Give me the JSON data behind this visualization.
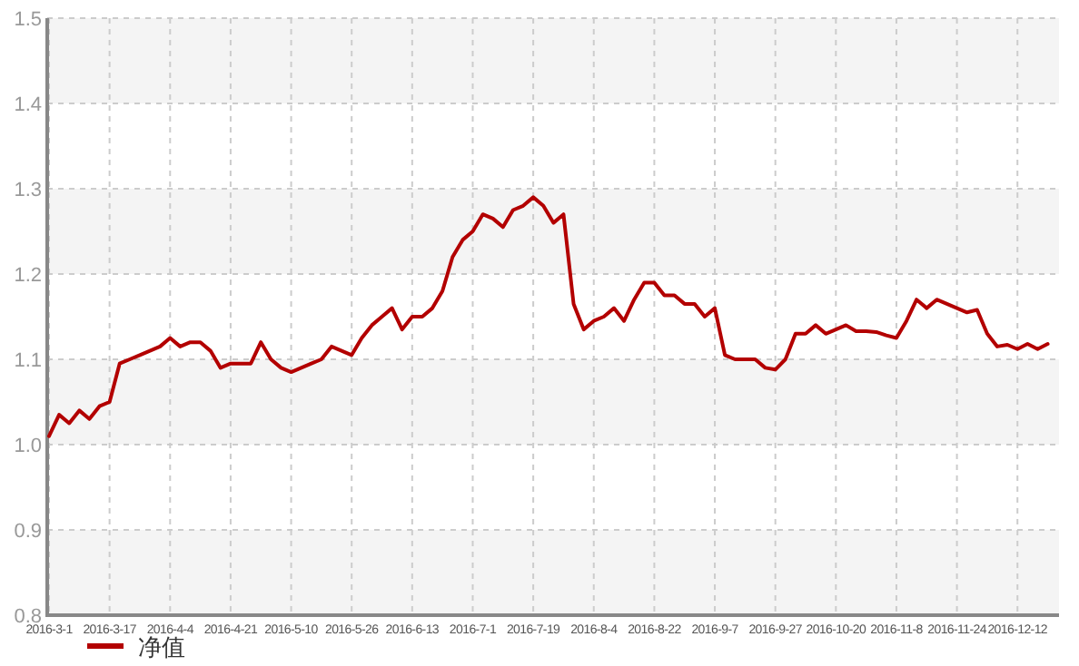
{
  "chart_data": {
    "type": "line",
    "categories": [
      "2016-3-1",
      null,
      null,
      null,
      null,
      null,
      "2016-3-17",
      null,
      null,
      null,
      null,
      null,
      "2016-4-4",
      null,
      null,
      null,
      null,
      null,
      "2016-4-21",
      null,
      null,
      null,
      null,
      null,
      "2016-5-10",
      null,
      null,
      null,
      null,
      null,
      "2016-5-26",
      null,
      null,
      null,
      null,
      null,
      "2016-6-13",
      null,
      null,
      null,
      null,
      null,
      "2016-7-1",
      null,
      null,
      null,
      null,
      null,
      "2016-7-19",
      null,
      null,
      null,
      null,
      null,
      "2016-8-4",
      null,
      null,
      null,
      null,
      null,
      "2016-8-22",
      null,
      null,
      null,
      null,
      null,
      "2016-9-7",
      null,
      null,
      null,
      null,
      null,
      "2016-9-27",
      null,
      null,
      null,
      null,
      null,
      "2016-10-20",
      null,
      null,
      null,
      null,
      null,
      "2016-11-8",
      null,
      null,
      null,
      null,
      null,
      "2016-11-24",
      null,
      null,
      null,
      null,
      null,
      "2016-12-12",
      null,
      null,
      null
    ],
    "series": [
      {
        "name": "净值",
        "color": "#b30000",
        "values": [
          1.01,
          1.035,
          1.025,
          1.04,
          1.03,
          1.045,
          1.05,
          1.095,
          1.1,
          1.105,
          1.11,
          1.115,
          1.125,
          1.115,
          1.12,
          1.12,
          1.11,
          1.09,
          1.095,
          1.095,
          1.095,
          1.12,
          1.1,
          1.09,
          1.085,
          1.09,
          1.095,
          1.1,
          1.115,
          1.11,
          1.105,
          1.125,
          1.14,
          1.15,
          1.16,
          1.135,
          1.15,
          1.15,
          1.16,
          1.18,
          1.22,
          1.24,
          1.25,
          1.27,
          1.265,
          1.255,
          1.275,
          1.28,
          1.29,
          1.28,
          1.26,
          1.27,
          1.165,
          1.135,
          1.145,
          1.15,
          1.16,
          1.145,
          1.17,
          1.19,
          1.19,
          1.175,
          1.175,
          1.165,
          1.165,
          1.15,
          1.16,
          1.105,
          1.1,
          1.1,
          1.1,
          1.09,
          1.088,
          1.1,
          1.13,
          1.13,
          1.14,
          1.13,
          1.135,
          1.14,
          1.133,
          1.133,
          1.132,
          1.128,
          1.125,
          1.145,
          1.17,
          1.16,
          1.17,
          1.165,
          1.16,
          1.155,
          1.158,
          1.13,
          1.115,
          1.117,
          1.112,
          1.118,
          1.112,
          1.118
        ]
      }
    ],
    "ylim": [
      0.8,
      1.5
    ],
    "yticks": [
      0.8,
      0.9,
      {
        "value": 1.0,
        "label": "1.0"
      },
      1.1,
      1.2,
      1.3,
      1.4,
      1.5
    ],
    "grid": true,
    "legend": "bottom left",
    "marker": "none",
    "line_style": "solid"
  }
}
